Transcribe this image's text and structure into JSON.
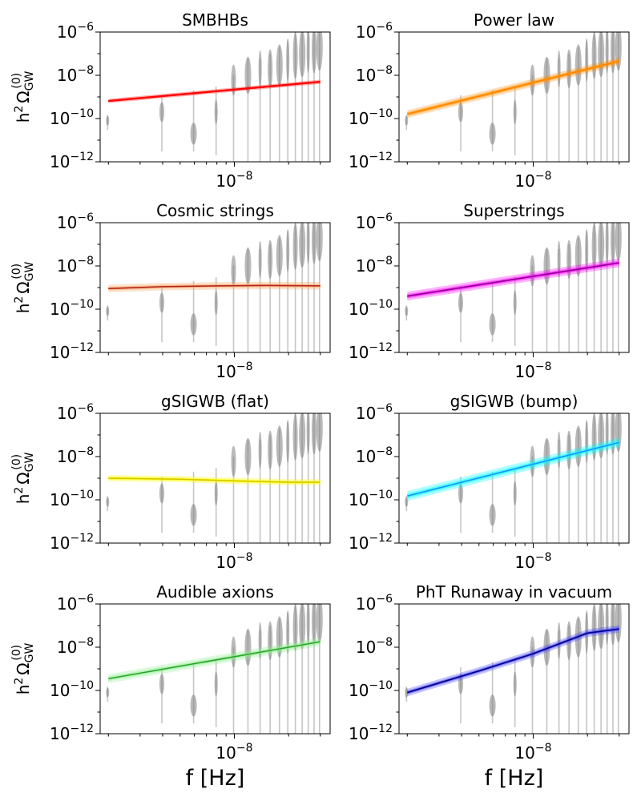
{
  "chart_data": {
    "type": "line",
    "layout": "4x2 grid of log-log panels",
    "xlabel": "f [Hz]",
    "ylabel_base": "h",
    "ylabel_sup2": "2",
    "ylabel_omega": "Ω",
    "ylabel_sub": "GW",
    "ylabel_sup0": "(0)",
    "xscale": "log",
    "yscale": "log",
    "xlim": [
      1.8e-09,
      3.4e-08
    ],
    "ylim": [
      1e-12,
      1e-06
    ],
    "yticks": [
      {
        "value": 1e-06,
        "base": "10",
        "exp": "−6"
      },
      {
        "value": 1e-08,
        "base": "10",
        "exp": "−8"
      },
      {
        "value": 1e-10,
        "base": "10",
        "exp": "−10"
      },
      {
        "value": 1e-12,
        "base": "10",
        "exp": "−12"
      }
    ],
    "xticks": [
      {
        "value": 1e-08,
        "base": "10",
        "exp": "−8"
      }
    ],
    "data_violins": {
      "color": "#808080",
      "frequencies_hz": [
        1.98e-09,
        3.96e-09,
        5.94e-09,
        7.92e-09,
        9.9e-09,
        1.19e-08,
        1.39e-08,
        1.58e-08,
        1.78e-08,
        1.98e-08,
        2.18e-08,
        2.38e-08,
        2.57e-08,
        2.77e-08,
        2.97e-08
      ],
      "lower": [
        3e-11,
        3e-12,
        3e-12,
        2e-12,
        1e-12,
        1e-12,
        1e-12,
        1e-12,
        1e-12,
        1e-12,
        1e-12,
        1e-12,
        1e-12,
        1e-12,
        1e-12
      ],
      "upper": [
        1.5e-10,
        1.2e-09,
        2e-09,
        3e-09,
        1e-08,
        6e-08,
        6e-08,
        1e-07,
        2e-07,
        4e-07,
        1e-06,
        1e-06,
        1e-06,
        1e-06,
        1e-06
      ],
      "center": [
        8e-11,
        2e-10,
        2e-11,
        2e-10,
        6e-09,
        1e-08,
        2e-08,
        2e-08,
        3e-08,
        5e-08,
        8e-08,
        1e-07,
        1.5e-07,
        1.5e-07,
        2e-07
      ]
    },
    "panels": [
      {
        "title": "SMBHBs",
        "color": "#ff0000",
        "line_color": "#ff0000",
        "x": [
          2e-09,
          3e-08
        ],
        "y": [
          6.5e-10,
          5e-09
        ],
        "band_factor": 1.25
      },
      {
        "title": "Power law",
        "color": "#ff8c00",
        "line_color": "#ff8c00",
        "x": [
          2e-09,
          3e-08
        ],
        "y": [
          1.6e-10,
          4.5e-08
        ],
        "band_factor": 1.5
      },
      {
        "title": "Cosmic strings",
        "color": "#f4a460",
        "line_color": "#b22222",
        "x": [
          2e-09,
          4e-09,
          8e-09,
          1.5e-08,
          3e-08
        ],
        "y": [
          9e-10,
          1.1e-09,
          1.2e-09,
          1.25e-09,
          1.2e-09
        ],
        "band_factor": 1.5
      },
      {
        "title": "Superstrings",
        "color": "#ff00ff",
        "line_color": "#8b008b",
        "x": [
          2e-09,
          3e-08
        ],
        "y": [
          4e-10,
          1.4e-08
        ],
        "band_factor": 1.6
      },
      {
        "title": "gSIGWB (flat)",
        "color": "#ffff00",
        "line_color": "#d4c400",
        "x": [
          2e-09,
          5e-09,
          1e-08,
          2e-08,
          3e-08
        ],
        "y": [
          1e-09,
          9e-10,
          7.5e-10,
          6.5e-10,
          6.5e-10
        ],
        "band_factor": 1.4
      },
      {
        "title": "gSIGWB (bump)",
        "color": "#00ffff",
        "line_color": "#1e90ff",
        "x": [
          2e-09,
          3e-08
        ],
        "y": [
          1.5e-10,
          4.5e-08
        ],
        "band_factor": 1.7
      },
      {
        "title": "Audible axions",
        "color": "#90ee90",
        "line_color": "#2ca02c",
        "x": [
          2e-09,
          3e-08
        ],
        "y": [
          3.5e-10,
          1.8e-08
        ],
        "band_factor": 1.6
      },
      {
        "title": "PhT Runaway in vacuum",
        "color": "#4040ff",
        "line_color": "#000080",
        "x": [
          2e-09,
          5e-09,
          1e-08,
          2e-08,
          3e-08
        ],
        "y": [
          8e-11,
          8e-10,
          5e-09,
          4.5e-08,
          7e-08
        ],
        "band_factor": 1.5
      }
    ]
  }
}
